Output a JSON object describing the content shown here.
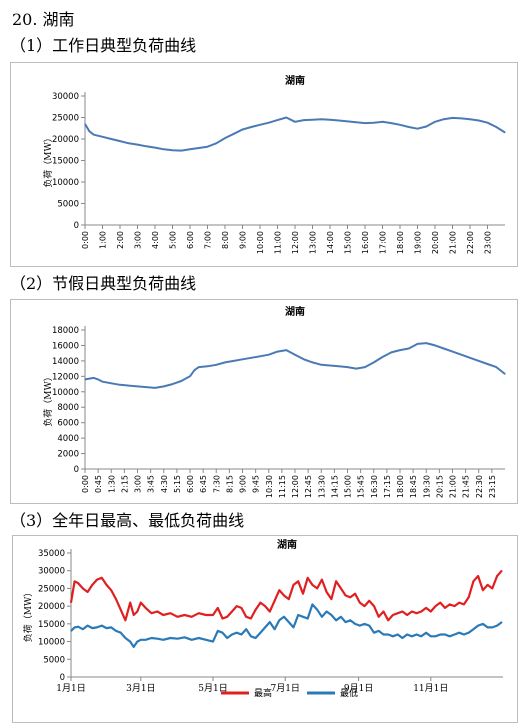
{
  "section_title": "20. 湖南",
  "headings": [
    "（1）工作日典型负荷曲线",
    "（2）节假日典型负荷曲线",
    "（3）全年日最高、最低负荷曲线"
  ],
  "chart_data": [
    {
      "type": "line",
      "title": "湖南",
      "ylabel": "负荷（MW）",
      "ylim": [
        0,
        30000
      ],
      "yticks": [
        "0",
        "5000",
        "10000",
        "15000",
        "20000",
        "25000",
        "30000"
      ],
      "xticks": [
        "0:00",
        "1:00",
        "2:00",
        "3:00",
        "4:00",
        "5:00",
        "6:00",
        "7:00",
        "8:00",
        "9:00",
        "10:00",
        "11:00",
        "12:00",
        "13:00",
        "14:00",
        "15:00",
        "16:00",
        "17:00",
        "18:00",
        "19:00",
        "20:00",
        "21:00",
        "22:00",
        "23:00"
      ],
      "x": [
        0,
        0.25,
        0.5,
        1,
        1.5,
        2,
        2.5,
        3,
        3.5,
        4,
        4.5,
        5,
        5.5,
        6,
        6.5,
        7,
        7.5,
        8,
        8.5,
        9,
        9.5,
        10,
        10.5,
        11,
        11.5,
        12,
        12.5,
        13,
        13.5,
        14,
        14.5,
        15,
        15.5,
        16,
        16.5,
        17,
        17.5,
        18,
        18.5,
        19,
        19.5,
        20,
        20.5,
        21,
        21.5,
        22,
        22.5,
        23,
        23.5,
        24
      ],
      "series": [
        {
          "color": "#4a7ab5",
          "values": [
            23500,
            21800,
            21000,
            20500,
            20000,
            19500,
            19000,
            18700,
            18300,
            18000,
            17600,
            17400,
            17300,
            17600,
            17900,
            18200,
            19000,
            20200,
            21200,
            22200,
            22800,
            23300,
            23800,
            24400,
            25000,
            24000,
            24400,
            24500,
            24600,
            24500,
            24300,
            24100,
            23900,
            23700,
            23800,
            24000,
            23700,
            23300,
            22800,
            22400,
            22900,
            24000,
            24600,
            24900,
            24800,
            24600,
            24300,
            23800,
            22800,
            21500
          ]
        }
      ]
    },
    {
      "type": "line",
      "title": "湖南",
      "ylabel": "负荷（MW）",
      "ylim": [
        0,
        18000
      ],
      "yticks": [
        "0",
        "2000",
        "4000",
        "6000",
        "8000",
        "10000",
        "12000",
        "14000",
        "16000",
        "18000"
      ],
      "xticks": [
        "0:00",
        "0:45",
        "1:30",
        "2:15",
        "3:00",
        "3:45",
        "4:30",
        "5:15",
        "6:00",
        "6:45",
        "7:30",
        "8:15",
        "9:00",
        "9:45",
        "10:30",
        "11:15",
        "12:00",
        "12:45",
        "13:30",
        "14:15",
        "15:00",
        "15:45",
        "16:30",
        "17:15",
        "18:00",
        "18:45",
        "19:30",
        "20:15",
        "21:00",
        "21:45",
        "22:30",
        "23:15"
      ],
      "x": [
        0,
        0.25,
        0.5,
        0.75,
        1,
        1.5,
        2,
        2.5,
        3,
        3.5,
        4,
        4.5,
        5,
        5.5,
        6,
        6.25,
        6.5,
        7,
        7.5,
        8,
        8.5,
        9,
        9.5,
        10,
        10.5,
        11,
        11.5,
        12,
        12.5,
        13,
        13.5,
        14,
        14.5,
        15,
        15.5,
        16,
        16.5,
        17,
        17.5,
        18,
        18.5,
        19,
        19.5,
        20,
        20.5,
        21,
        21.5,
        22,
        22.5,
        23,
        23.5,
        24
      ],
      "series": [
        {
          "color": "#4a7ab5",
          "values": [
            11600,
            11700,
            11800,
            11600,
            11300,
            11100,
            10900,
            10800,
            10700,
            10600,
            10500,
            10700,
            11000,
            11400,
            12000,
            12800,
            13200,
            13300,
            13500,
            13800,
            14000,
            14200,
            14400,
            14600,
            14800,
            15200,
            15400,
            14800,
            14200,
            13800,
            13500,
            13400,
            13300,
            13200,
            13000,
            13200,
            13800,
            14500,
            15100,
            15400,
            15600,
            16200,
            16300,
            16000,
            15600,
            15200,
            14800,
            14400,
            14000,
            13600,
            13200,
            12300
          ]
        }
      ]
    },
    {
      "type": "line",
      "title": "湖南",
      "ylabel": "负荷（MW）",
      "ylim": [
        0,
        35000
      ],
      "yticks": [
        "0",
        "5000",
        "10000",
        "15000",
        "20000",
        "25000",
        "30000",
        "35000"
      ],
      "xticks": [
        "1月1日",
        "3月1日",
        "5月1日",
        "7月1日",
        "9月1日",
        "11月1日"
      ],
      "xtick_days": [
        0,
        59,
        120,
        181,
        243,
        304
      ],
      "legend_position": "bottom",
      "series": [
        {
          "name": "最高",
          "color": "#e02020",
          "x": [
            0,
            3,
            6,
            10,
            14,
            18,
            22,
            26,
            30,
            34,
            38,
            42,
            46,
            50,
            53,
            56,
            59,
            63,
            68,
            73,
            78,
            84,
            90,
            96,
            102,
            108,
            114,
            120,
            124,
            128,
            132,
            136,
            140,
            144,
            148,
            152,
            156,
            160,
            164,
            168,
            172,
            176,
            180,
            184,
            188,
            192,
            196,
            200,
            204,
            208,
            212,
            216,
            220,
            224,
            228,
            232,
            236,
            240,
            244,
            248,
            252,
            256,
            260,
            264,
            268,
            272,
            276,
            280,
            284,
            288,
            292,
            296,
            300,
            304,
            308,
            312,
            316,
            320,
            324,
            328,
            332,
            336,
            340,
            344,
            348,
            352,
            356,
            360,
            364
          ],
          "values": [
            21000,
            27000,
            26500,
            25000,
            24000,
            26000,
            27500,
            28000,
            26000,
            24500,
            22000,
            19000,
            16000,
            21000,
            17500,
            18500,
            21000,
            19500,
            18000,
            18500,
            17500,
            18000,
            17000,
            17500,
            17000,
            18000,
            17500,
            17500,
            19500,
            16500,
            17000,
            18500,
            20000,
            19500,
            17000,
            16500,
            19000,
            21000,
            20000,
            18500,
            21500,
            24500,
            23000,
            22000,
            26000,
            27000,
            23500,
            28000,
            26000,
            25000,
            27500,
            24000,
            22000,
            27000,
            25000,
            23000,
            22500,
            23500,
            21000,
            20000,
            21500,
            20000,
            17000,
            18500,
            16000,
            17500,
            18000,
            18500,
            17500,
            18500,
            18000,
            18500,
            19500,
            18500,
            20000,
            21000,
            19500,
            20500,
            20000,
            21000,
            20500,
            22500,
            27000,
            28500,
            24500,
            26000,
            25000,
            28500,
            30000
          ]
        },
        {
          "name": "最低",
          "color": "#2a7ab8",
          "x": [
            0,
            3,
            6,
            10,
            14,
            18,
            22,
            26,
            30,
            34,
            38,
            42,
            46,
            50,
            53,
            56,
            59,
            63,
            68,
            73,
            78,
            84,
            90,
            96,
            102,
            108,
            114,
            120,
            124,
            128,
            132,
            136,
            140,
            144,
            148,
            152,
            156,
            160,
            164,
            168,
            172,
            176,
            180,
            184,
            188,
            192,
            196,
            200,
            204,
            208,
            212,
            216,
            220,
            224,
            228,
            232,
            236,
            240,
            244,
            248,
            252,
            256,
            260,
            264,
            268,
            272,
            276,
            280,
            284,
            288,
            292,
            296,
            300,
            304,
            308,
            312,
            316,
            320,
            324,
            328,
            332,
            336,
            340,
            344,
            348,
            352,
            356,
            360,
            364
          ],
          "values": [
            13000,
            14000,
            14200,
            13500,
            14500,
            13800,
            14000,
            14500,
            13800,
            14000,
            13000,
            12500,
            11000,
            10000,
            8500,
            10000,
            10500,
            10500,
            11000,
            10800,
            10500,
            11000,
            10800,
            11200,
            10500,
            11000,
            10500,
            10000,
            13000,
            12500,
            11000,
            12000,
            12500,
            12000,
            13500,
            11500,
            11000,
            12500,
            14000,
            15500,
            13500,
            16000,
            17000,
            15500,
            14000,
            17500,
            17000,
            16500,
            20500,
            19000,
            17000,
            18500,
            17500,
            16000,
            17000,
            15500,
            16000,
            15000,
            14500,
            15000,
            14500,
            12500,
            13000,
            12000,
            12000,
            11500,
            12000,
            11000,
            12000,
            11500,
            12000,
            11500,
            12500,
            11500,
            11500,
            12000,
            12000,
            11500,
            12000,
            12500,
            12000,
            12500,
            13500,
            14500,
            15000,
            14000,
            14000,
            14500,
            15500
          ]
        }
      ]
    }
  ]
}
